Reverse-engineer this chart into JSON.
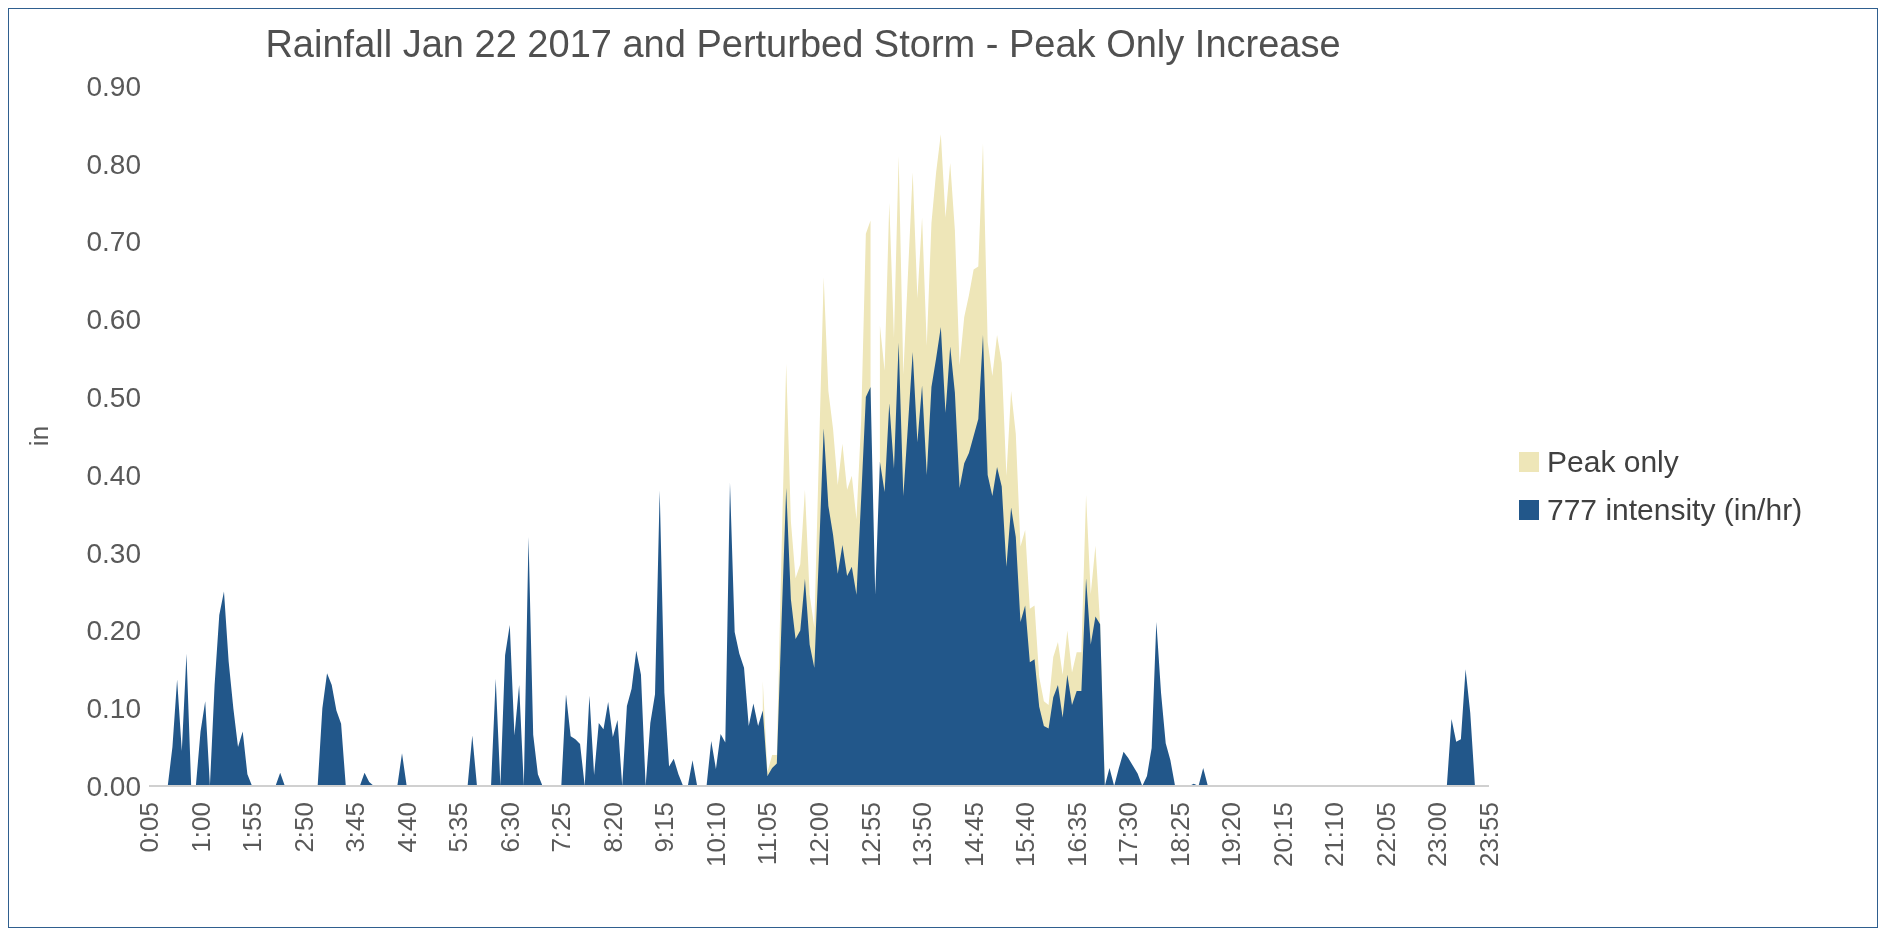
{
  "chart_data": {
    "type": "area",
    "title": "Rainfall Jan 22 2017 and Perturbed Storm - Peak Only Increase",
    "ylabel": "in",
    "categories": [
      "0:05",
      null,
      null,
      null,
      null,
      null,
      null,
      null,
      null,
      null,
      null,
      "1:00",
      null,
      null,
      null,
      null,
      null,
      null,
      null,
      null,
      null,
      null,
      "1:55",
      null,
      null,
      null,
      null,
      null,
      null,
      null,
      null,
      null,
      null,
      "2:50",
      null,
      null,
      null,
      null,
      null,
      null,
      null,
      null,
      null,
      null,
      "3:45",
      null,
      null,
      null,
      null,
      null,
      null,
      null,
      null,
      null,
      null,
      "4:40",
      null,
      null,
      null,
      null,
      null,
      null,
      null,
      null,
      null,
      null,
      "5:35",
      null,
      null,
      null,
      null,
      null,
      null,
      null,
      null,
      null,
      null,
      "6:30",
      null,
      null,
      null,
      null,
      null,
      null,
      null,
      null,
      null,
      null,
      "7:25",
      null,
      null,
      null,
      null,
      null,
      null,
      null,
      null,
      null,
      null,
      "8:20",
      null,
      null,
      null,
      null,
      null,
      null,
      null,
      null,
      null,
      null,
      "9:15",
      null,
      null,
      null,
      null,
      null,
      null,
      null,
      null,
      null,
      null,
      "10:10",
      null,
      null,
      null,
      null,
      null,
      null,
      null,
      null,
      null,
      null,
      "11:05",
      null,
      null,
      null,
      null,
      null,
      null,
      null,
      null,
      null,
      null,
      "12:00",
      null,
      null,
      null,
      null,
      null,
      null,
      null,
      null,
      null,
      null,
      "12:55",
      null,
      null,
      null,
      null,
      null,
      null,
      null,
      null,
      null,
      null,
      "13:50",
      null,
      null,
      null,
      null,
      null,
      null,
      null,
      null,
      null,
      null,
      "14:45",
      null,
      null,
      null,
      null,
      null,
      null,
      null,
      null,
      null,
      null,
      "15:40",
      null,
      null,
      null,
      null,
      null,
      null,
      null,
      null,
      null,
      null,
      "16:35",
      null,
      null,
      null,
      null,
      null,
      null,
      null,
      null,
      null,
      null,
      "17:30",
      null,
      null,
      null,
      null,
      null,
      null,
      null,
      null,
      null,
      null,
      "18:25",
      null,
      null,
      null,
      null,
      null,
      null,
      null,
      null,
      null,
      null,
      "19:20",
      null,
      null,
      null,
      null,
      null,
      null,
      null,
      null,
      null,
      null,
      "20:15",
      null,
      null,
      null,
      null,
      null,
      null,
      null,
      null,
      null,
      null,
      "21:10",
      null,
      null,
      null,
      null,
      null,
      null,
      null,
      null,
      null,
      null,
      "22:05",
      null,
      null,
      null,
      null,
      null,
      null,
      null,
      null,
      null,
      null,
      "23:00",
      null,
      null,
      null,
      null,
      null,
      null,
      null,
      null,
      null,
      null,
      "23:55"
    ],
    "series": [
      {
        "name": "Peak only",
        "color": "#eee6b8",
        "values": [
          null,
          null,
          null,
          null,
          null,
          null,
          null,
          null,
          null,
          null,
          null,
          null,
          null,
          null,
          null,
          null,
          null,
          null,
          null,
          null,
          null,
          null,
          null,
          null,
          null,
          null,
          null,
          null,
          null,
          null,
          null,
          null,
          null,
          null,
          null,
          null,
          null,
          null,
          null,
          null,
          null,
          null,
          null,
          null,
          null,
          null,
          null,
          null,
          null,
          null,
          null,
          null,
          null,
          null,
          null,
          null,
          null,
          null,
          null,
          null,
          null,
          null,
          null,
          null,
          null,
          null,
          null,
          null,
          null,
          null,
          null,
          null,
          null,
          null,
          null,
          null,
          null,
          null,
          null,
          null,
          null,
          null,
          null,
          null,
          null,
          null,
          null,
          null,
          null,
          null,
          null,
          null,
          null,
          null,
          null,
          null,
          null,
          null,
          null,
          null,
          null,
          null,
          null,
          null,
          null,
          null,
          null,
          null,
          null,
          null,
          null,
          null,
          null,
          null,
          null,
          null,
          null,
          null,
          null,
          null,
          null,
          null,
          null,
          null,
          null,
          null,
          null,
          null,
          null,
          null,
          null,
          0.135,
          0.018,
          0.04,
          0.04,
          0.3,
          0.543,
          0.34,
          0.267,
          0.285,
          0.381,
          0.246,
          0.204,
          0.43,
          0.654,
          0.508,
          0.459,
          0.387,
          0.44,
          0.381,
          0.399,
          0.343,
          0.47,
          0.71,
          0.727,
          null,
          0.592,
          0.534,
          0.75,
          0.576,
          0.81,
          0.529,
          0.66,
          0.789,
          0.627,
          0.731,
          0.566,
          0.724,
          0.789,
          0.838,
          0.731,
          0.801,
          0.715,
          0.541,
          0.603,
          0.631,
          0.664,
          0.668,
          0.826,
          0.571,
          0.527,
          0.58,
          0.544,
          0.399,
          0.508,
          0.453,
          0.308,
          0.329,
          0.228,
          0.232,
          0.14,
          0.109,
          0.104,
          0.166,
          0.185,
          0.143,
          0.2,
          0.146,
          0.172,
          0.172,
          0.374,
          0.247,
          0.309,
          0.208,
          0,
          null,
          null,
          null,
          null,
          null,
          null,
          null,
          null,
          null,
          null,
          null,
          null,
          null,
          null,
          null,
          null,
          null,
          null,
          null,
          null,
          null,
          null,
          null,
          null,
          null,
          null,
          null,
          null,
          null,
          null,
          null,
          null,
          null,
          null,
          null,
          null,
          null,
          null,
          null,
          null,
          null,
          null,
          null,
          null,
          null,
          null,
          null,
          null,
          null,
          null,
          null,
          null,
          null,
          null,
          null,
          null,
          null,
          null,
          null,
          null,
          null,
          null,
          null,
          null,
          null,
          null,
          null,
          null,
          null,
          null,
          null,
          null,
          null,
          null,
          null,
          null,
          null,
          null,
          null,
          null,
          null,
          null
        ]
      },
      {
        "name": "777 intensity (in/hr)",
        "color": "#22578a",
        "values": [
          0,
          0,
          0,
          0,
          0,
          0.05,
          0.137,
          0.045,
          0.17,
          0,
          0,
          0.07,
          0.109,
          0,
          0.13,
          0.22,
          0.25,
          0.16,
          0.1,
          0.05,
          0.07,
          0.015,
          0,
          0,
          0,
          0,
          0,
          0,
          0.017,
          0,
          0,
          0,
          0,
          0,
          0,
          0,
          0,
          0.1,
          0.145,
          0.13,
          0.097,
          0.08,
          0,
          0,
          0,
          0,
          0.017,
          0.005,
          0,
          0,
          0,
          0,
          0,
          0,
          0.042,
          0,
          0,
          0,
          0,
          0,
          0,
          0,
          0,
          0,
          0,
          0,
          0,
          0,
          0,
          0.065,
          0,
          0,
          0,
          0,
          0.138,
          0,
          0.168,
          0.207,
          0.065,
          0.13,
          0,
          0.32,
          0.066,
          0.015,
          0,
          0,
          0,
          0,
          0,
          0.118,
          0.064,
          0.06,
          0.054,
          0,
          0.116,
          0.014,
          0.081,
          0.073,
          0.108,
          0.063,
          0.085,
          0,
          0.103,
          0.125,
          0.174,
          0.143,
          0,
          0.081,
          0.118,
          0.38,
          0.12,
          0.025,
          0.035,
          0.015,
          0,
          0,
          0.033,
          0,
          0,
          0,
          0.058,
          0.022,
          0.067,
          0.056,
          0.39,
          0.198,
          0.17,
          0.152,
          0.077,
          0.106,
          0.077,
          0.097,
          0.013,
          0.023,
          0.029,
          0.21,
          0.383,
          0.24,
          0.189,
          0.2,
          0.266,
          0.182,
          0.152,
          0.3,
          0.46,
          0.36,
          0.323,
          0.273,
          0.31,
          0.27,
          0.282,
          0.246,
          0.37,
          0.5,
          0.513,
          0.246,
          0.417,
          0.378,
          0.492,
          0.408,
          0.57,
          0.373,
          0.465,
          0.558,
          0.442,
          0.515,
          0.4,
          0.513,
          0.55,
          0.59,
          0.48,
          0.565,
          0.506,
          0.383,
          0.415,
          0.428,
          0.45,
          0.472,
          0.58,
          0.4,
          0.373,
          0.41,
          0.385,
          0.282,
          0.358,
          0.32,
          0.211,
          0.232,
          0.159,
          0.163,
          0.102,
          0.077,
          0.074,
          0.114,
          0.13,
          0.088,
          0.143,
          0.104,
          0.122,
          0.122,
          0.267,
          0.182,
          0.218,
          0.208,
          0,
          0.023,
          0,
          0.023,
          0.044,
          0.036,
          0.026,
          0.016,
          0,
          0.013,
          0.049,
          0.211,
          0.12,
          0.055,
          0.033,
          0,
          0,
          0,
          0,
          0.003,
          0,
          0.023,
          0,
          0,
          0,
          0,
          0,
          0,
          0,
          0,
          0,
          0,
          0,
          0,
          0,
          0,
          0,
          0,
          0,
          0,
          0,
          0,
          0,
          0,
          0,
          0,
          0,
          0,
          0,
          0,
          0,
          0,
          0,
          0,
          0,
          0,
          0,
          0,
          0,
          0,
          0,
          0,
          0,
          0,
          0,
          0,
          0,
          0,
          0,
          0,
          0,
          0,
          0,
          0,
          0.086,
          0.057,
          0.06,
          0.15,
          0.094,
          0,
          0,
          0,
          0
        ]
      }
    ],
    "ylim": [
      0,
      0.9
    ],
    "yticks": [
      {
        "value": 0,
        "label": "0.00"
      },
      {
        "value": 0.1,
        "label": "0.10"
      },
      {
        "value": 0.2,
        "label": "0.20"
      },
      {
        "value": 0.3,
        "label": "0.30"
      },
      {
        "value": 0.4,
        "label": "0.40"
      },
      {
        "value": 0.5,
        "label": "0.50"
      },
      {
        "value": 0.6,
        "label": "0.60"
      },
      {
        "value": 0.7,
        "label": "0.70"
      },
      {
        "value": 0.8,
        "label": "0.80"
      },
      {
        "value": 0.9,
        "label": "0.90"
      }
    ],
    "grid": false,
    "legend": "right"
  }
}
